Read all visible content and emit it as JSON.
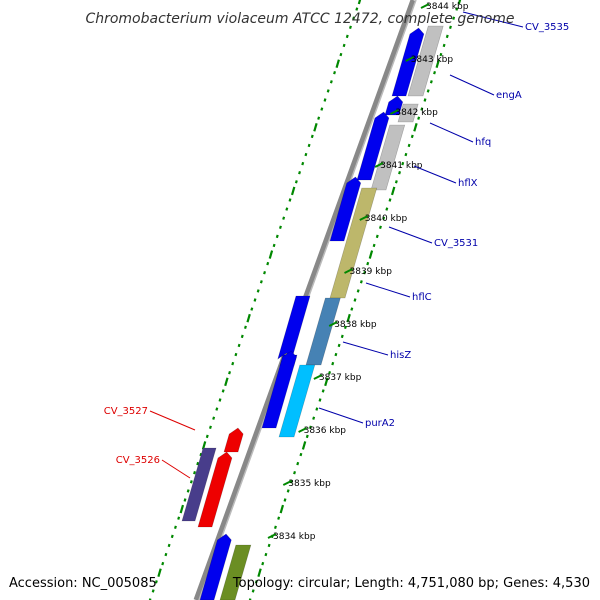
{
  "title": "Chromobacterium violaceum ATCC 12472, complete genome",
  "footer": {
    "accession": "Accession: NC_005085",
    "topology": "Topology: circular; Length: 4,751,080 bp; Genes: 4,530"
  },
  "ticks": [
    {
      "label": "3834 kbp"
    },
    {
      "label": "3835 kbp"
    },
    {
      "label": "3836 kbp"
    },
    {
      "label": "3837 kbp"
    },
    {
      "label": "3838 kbp"
    },
    {
      "label": "3839 kbp"
    },
    {
      "label": "3840 kbp"
    },
    {
      "label": "3841 kbp"
    },
    {
      "label": "3842 kbp"
    },
    {
      "label": "3843 kbp"
    },
    {
      "label": "3844 kbp"
    }
  ],
  "genes": [
    {
      "name": "CV_3535",
      "strand": "plus"
    },
    {
      "name": "engA",
      "strand": "plus"
    },
    {
      "name": "hfq",
      "strand": "plus"
    },
    {
      "name": "hflX",
      "strand": "plus"
    },
    {
      "name": "CV_3531",
      "strand": "plus"
    },
    {
      "name": "hflC",
      "strand": "plus"
    },
    {
      "name": "hisZ",
      "strand": "plus"
    },
    {
      "name": "purA2",
      "strand": "plus"
    },
    {
      "name": "CV_3527",
      "strand": "minus"
    },
    {
      "name": "CV_3526",
      "strand": "minus"
    }
  ],
  "colors": {
    "backbone": "#888888",
    "cds": "#0000ee",
    "plus_label": "#0000aa",
    "minus_label": "#dd0000",
    "gc_dots": "#008800",
    "feature_grey": "#c0c0c0",
    "feature_khaki": "#bdb76b",
    "feature_steelblue": "#4682b4",
    "feature_cyan": "#00bfff",
    "feature_darkslate": "#483d8b",
    "feature_red": "#ee0000",
    "feature_olive": "#6b8e23"
  }
}
